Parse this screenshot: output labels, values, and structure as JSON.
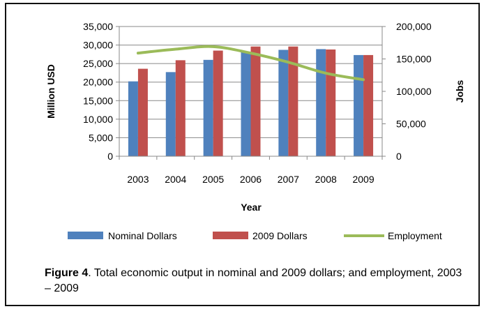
{
  "caption": {
    "label": "Figure 4",
    "text": ".  Total economic output in nominal and 2009 dollars; and employment, 2003 – 2009"
  },
  "chart_data": {
    "type": "bar",
    "xlabel": "Year",
    "ylabel": "Million USD",
    "y2label": "Jobs",
    "categories": [
      "2003",
      "2004",
      "2005",
      "2006",
      "2007",
      "2008",
      "2009"
    ],
    "ylim": [
      0,
      35000
    ],
    "y2lim": [
      0,
      200000
    ],
    "yticks": [
      "0",
      "5,000",
      "10,000",
      "15,000",
      "20,000",
      "25,000",
      "30,000",
      "35,000"
    ],
    "y2ticks": [
      "0",
      "50,000",
      "100,000",
      "150,000",
      "200,000"
    ],
    "grid": true,
    "legend": "bottom",
    "series": [
      {
        "name": "Nominal Dollars",
        "kind": "bar",
        "axis": "left",
        "color": "#4f81bd",
        "values": [
          20200,
          22700,
          26000,
          28100,
          28700,
          28900,
          27300
        ]
      },
      {
        "name": "2009 Dollars",
        "kind": "bar",
        "axis": "left",
        "color": "#c0504d",
        "values": [
          23600,
          25900,
          28500,
          29600,
          29600,
          28800,
          27300
        ]
      },
      {
        "name": "Employment",
        "kind": "line",
        "axis": "right",
        "color": "#9bbb59",
        "values": [
          159000,
          165000,
          169000,
          159000,
          145000,
          128000,
          118000
        ]
      }
    ]
  }
}
